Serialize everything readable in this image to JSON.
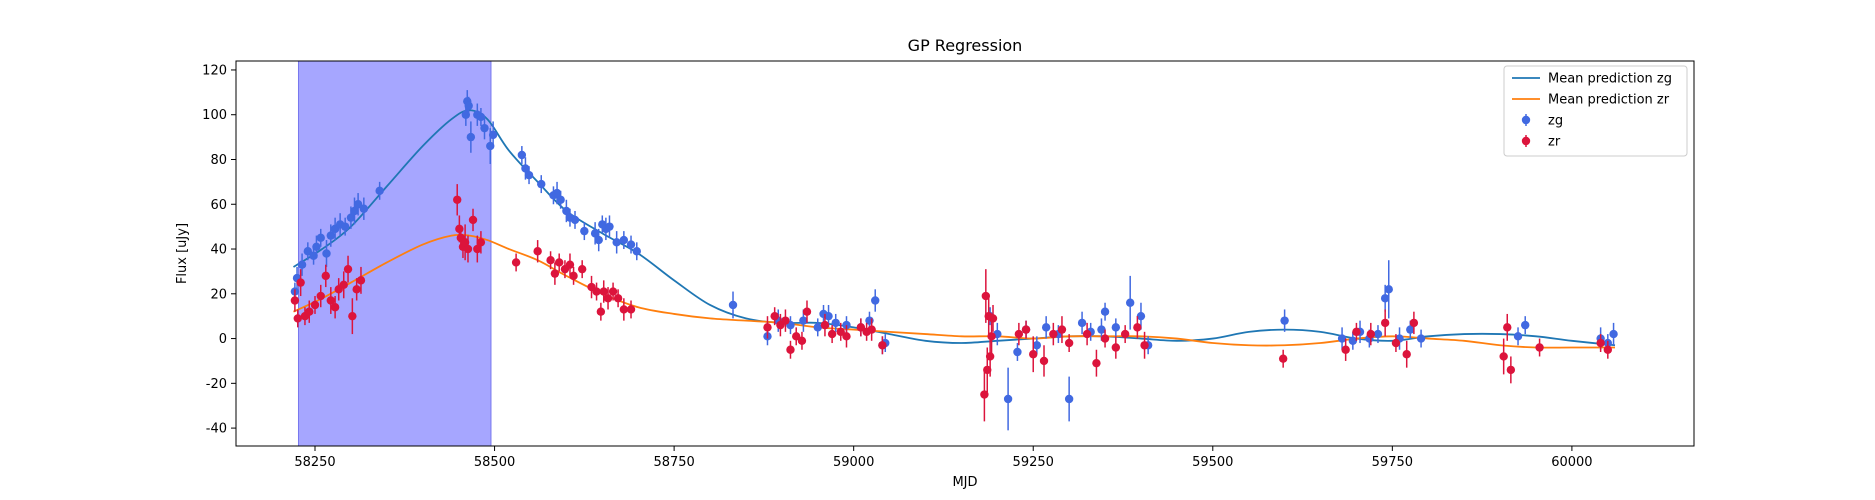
{
  "chart_data": {
    "type": "scatter",
    "title": "GP Regression",
    "xlabel": "MJD",
    "ylabel": "Flux [uJy]",
    "xlim": [
      58140,
      60170
    ],
    "ylim": [
      -48,
      124
    ],
    "xticks": [
      58250,
      58500,
      58750,
      59000,
      59250,
      59500,
      59750,
      60000
    ],
    "yticks": [
      -40,
      -20,
      0,
      20,
      40,
      60,
      80,
      100,
      120
    ],
    "grid": false,
    "legend_position": "top-right",
    "shaded_region": {
      "x0": 58227,
      "x1": 58495,
      "color": "#a6a6ff"
    },
    "colors": {
      "zg_line": "#1f77b4",
      "zr_line": "#ff7f0e",
      "zg_points": "#4169e1",
      "zr_points": "#dc143c"
    },
    "legend": [
      {
        "label": "Mean prediction zg",
        "kind": "line",
        "color": "#1f77b4"
      },
      {
        "label": "Mean prediction zr",
        "kind": "line",
        "color": "#ff7f0e"
      },
      {
        "label": "zg",
        "kind": "point",
        "color": "#4169e1"
      },
      {
        "label": "zr",
        "kind": "point",
        "color": "#dc143c"
      }
    ],
    "lines": [
      {
        "name": "Mean prediction zg",
        "x": [
          58220,
          58260,
          58300,
          58350,
          58400,
          58440,
          58465,
          58490,
          58520,
          58560,
          58600,
          58650,
          58700,
          58750,
          58800,
          58850,
          58900,
          58950,
          59000,
          59050,
          59100,
          59150,
          59200,
          59250,
          59300,
          59350,
          59400,
          59450,
          59500,
          59550,
          59600,
          59650,
          59700,
          59750,
          59800,
          59850,
          59900,
          59950,
          60000,
          60060
        ],
        "y": [
          32,
          40,
          50,
          68,
          86,
          98,
          102,
          98,
          84,
          70,
          57,
          47,
          38,
          26,
          15,
          9,
          7,
          7,
          5,
          2,
          -1,
          -2,
          -1,
          0,
          1,
          1,
          0,
          -1,
          0,
          3,
          4,
          3,
          0,
          -1,
          1,
          2,
          2,
          1,
          -1,
          -3
        ]
      },
      {
        "name": "Mean prediction zr",
        "x": [
          58220,
          58260,
          58300,
          58350,
          58400,
          58440,
          58465,
          58490,
          58520,
          58560,
          58600,
          58650,
          58700,
          58750,
          58800,
          58850,
          58900,
          58950,
          59000,
          59050,
          59100,
          59150,
          59200,
          59250,
          59300,
          59350,
          59400,
          59450,
          59500,
          59550,
          59600,
          59650,
          59700,
          59750,
          59800,
          59850,
          59900,
          59950,
          60000,
          60060
        ],
        "y": [
          12,
          18,
          25,
          34,
          42,
          46,
          46,
          44,
          40,
          35,
          28,
          20,
          14,
          11,
          9,
          8,
          7,
          5,
          4,
          3,
          2,
          1,
          1,
          0,
          1,
          1,
          1,
          0,
          -2,
          -3,
          -3,
          -2,
          0,
          1,
          0,
          -1,
          -3,
          -4,
          -4,
          -4
        ]
      }
    ],
    "series": [
      {
        "name": "zg",
        "points": [
          [
            58222,
            21,
            4
          ],
          [
            58225,
            27,
            5
          ],
          [
            58232,
            33,
            5
          ],
          [
            58240,
            39,
            4
          ],
          [
            58248,
            37,
            4
          ],
          [
            58252,
            41,
            5
          ],
          [
            58258,
            45,
            4
          ],
          [
            58266,
            38,
            6
          ],
          [
            58272,
            46,
            5
          ],
          [
            58278,
            49,
            5
          ],
          [
            58285,
            51,
            5
          ],
          [
            58292,
            50,
            4
          ],
          [
            58300,
            54,
            5
          ],
          [
            58305,
            57,
            6
          ],
          [
            58310,
            60,
            5
          ],
          [
            58318,
            58,
            5
          ],
          [
            58340,
            66,
            4
          ],
          [
            58460,
            100,
            5
          ],
          [
            58462,
            106,
            5
          ],
          [
            58464,
            104,
            4
          ],
          [
            58467,
            90,
            7
          ],
          [
            58476,
            100,
            5
          ],
          [
            58481,
            99,
            4
          ],
          [
            58486,
            94,
            5
          ],
          [
            58494,
            86,
            8
          ],
          [
            58498,
            91,
            6
          ],
          [
            58538,
            82,
            4
          ],
          [
            58543,
            76,
            5
          ],
          [
            58548,
            73,
            4
          ],
          [
            58565,
            69,
            4
          ],
          [
            58582,
            64,
            4
          ],
          [
            58587,
            65,
            5
          ],
          [
            58592,
            62,
            4
          ],
          [
            58600,
            57,
            5
          ],
          [
            58605,
            54,
            4
          ],
          [
            58612,
            53,
            4
          ],
          [
            58625,
            48,
            4
          ],
          [
            58640,
            47,
            5
          ],
          [
            58645,
            44,
            5
          ],
          [
            58650,
            51,
            4
          ],
          [
            58655,
            49,
            5
          ],
          [
            58660,
            50,
            5
          ],
          [
            58670,
            43,
            5
          ],
          [
            58680,
            44,
            4
          ],
          [
            58690,
            42,
            4
          ],
          [
            58698,
            39,
            4
          ],
          [
            58832,
            15,
            6
          ],
          [
            58880,
            1,
            4
          ],
          [
            58895,
            8,
            5
          ],
          [
            58912,
            6,
            4
          ],
          [
            58930,
            8,
            5
          ],
          [
            58950,
            5,
            4
          ],
          [
            58958,
            11,
            4
          ],
          [
            58965,
            10,
            5
          ],
          [
            58975,
            7,
            4
          ],
          [
            58990,
            6,
            4
          ],
          [
            59010,
            5,
            4
          ],
          [
            59022,
            8,
            4
          ],
          [
            59030,
            17,
            5
          ],
          [
            59040,
            -3,
            4
          ],
          [
            59044,
            -2,
            4
          ],
          [
            59190,
            10,
            4
          ],
          [
            59200,
            2,
            5
          ],
          [
            59215,
            -27,
            14
          ],
          [
            59228,
            -6,
            4
          ],
          [
            59240,
            4,
            4
          ],
          [
            59255,
            -3,
            4
          ],
          [
            59268,
            5,
            5
          ],
          [
            59285,
            2,
            4
          ],
          [
            59300,
            -27,
            10
          ],
          [
            59318,
            7,
            5
          ],
          [
            59330,
            3,
            4
          ],
          [
            59345,
            4,
            5
          ],
          [
            59350,
            12,
            4
          ],
          [
            59365,
            5,
            4
          ],
          [
            59385,
            16,
            12
          ],
          [
            59400,
            10,
            6
          ],
          [
            59410,
            -3,
            4
          ],
          [
            59600,
            8,
            5
          ],
          [
            59680,
            0,
            5
          ],
          [
            59695,
            -1,
            4
          ],
          [
            59705,
            3,
            5
          ],
          [
            59718,
            0,
            4
          ],
          [
            59730,
            2,
            4
          ],
          [
            59740,
            18,
            6
          ],
          [
            59745,
            22,
            13
          ],
          [
            59760,
            0,
            5
          ],
          [
            59775,
            4,
            4
          ],
          [
            59790,
            0,
            4
          ],
          [
            59925,
            1,
            4
          ],
          [
            59935,
            6,
            4
          ],
          [
            60040,
            0,
            5
          ],
          [
            60050,
            -2,
            4
          ],
          [
            60058,
            2,
            5
          ]
        ]
      },
      {
        "name": "zr",
        "points": [
          [
            58222,
            17,
            5
          ],
          [
            58226,
            9,
            4
          ],
          [
            58230,
            25,
            6
          ],
          [
            58236,
            10,
            4
          ],
          [
            58242,
            12,
            5
          ],
          [
            58250,
            15,
            4
          ],
          [
            58258,
            19,
            5
          ],
          [
            58265,
            28,
            5
          ],
          [
            58272,
            17,
            6
          ],
          [
            58278,
            14,
            5
          ],
          [
            58283,
            22,
            5
          ],
          [
            58290,
            24,
            6
          ],
          [
            58296,
            31,
            6
          ],
          [
            58302,
            10,
            8
          ],
          [
            58308,
            22,
            5
          ],
          [
            58314,
            26,
            6
          ],
          [
            58448,
            62,
            7
          ],
          [
            58451,
            49,
            6
          ],
          [
            58453,
            45,
            5
          ],
          [
            58456,
            41,
            5
          ],
          [
            58459,
            43,
            8
          ],
          [
            58463,
            40,
            6
          ],
          [
            58470,
            53,
            5
          ],
          [
            58476,
            40,
            6
          ],
          [
            58481,
            43,
            5
          ],
          [
            58530,
            34,
            4
          ],
          [
            58560,
            39,
            5
          ],
          [
            58578,
            35,
            4
          ],
          [
            58584,
            29,
            5
          ],
          [
            58590,
            34,
            4
          ],
          [
            58598,
            31,
            4
          ],
          [
            58605,
            33,
            5
          ],
          [
            58610,
            28,
            4
          ],
          [
            58622,
            31,
            4
          ],
          [
            58635,
            23,
            5
          ],
          [
            58642,
            21,
            4
          ],
          [
            58648,
            12,
            4
          ],
          [
            58652,
            21,
            5
          ],
          [
            58658,
            18,
            5
          ],
          [
            58665,
            21,
            4
          ],
          [
            58672,
            18,
            4
          ],
          [
            58680,
            13,
            5
          ],
          [
            58690,
            13,
            4
          ],
          [
            58880,
            5,
            5
          ],
          [
            58890,
            10,
            4
          ],
          [
            58898,
            6,
            5
          ],
          [
            58905,
            8,
            5
          ],
          [
            58912,
            -5,
            4
          ],
          [
            58920,
            1,
            4
          ],
          [
            58928,
            -1,
            4
          ],
          [
            58935,
            12,
            5
          ],
          [
            58960,
            6,
            5
          ],
          [
            58970,
            2,
            4
          ],
          [
            58982,
            3,
            4
          ],
          [
            58990,
            1,
            5
          ],
          [
            59010,
            5,
            4
          ],
          [
            59018,
            3,
            4
          ],
          [
            59025,
            4,
            5
          ],
          [
            59040,
            -3,
            4
          ],
          [
            59182,
            -25,
            12
          ],
          [
            59184,
            19,
            12
          ],
          [
            59186,
            -14,
            10
          ],
          [
            59188,
            10,
            10
          ],
          [
            59190,
            -8,
            9
          ],
          [
            59192,
            1,
            8
          ],
          [
            59194,
            9,
            6
          ],
          [
            59230,
            2,
            5
          ],
          [
            59240,
            4,
            4
          ],
          [
            59250,
            -7,
            8
          ],
          [
            59265,
            -10,
            7
          ],
          [
            59278,
            2,
            5
          ],
          [
            59290,
            4,
            6
          ],
          [
            59300,
            -2,
            4
          ],
          [
            59325,
            2,
            5
          ],
          [
            59338,
            -11,
            6
          ],
          [
            59350,
            0,
            4
          ],
          [
            59365,
            -4,
            5
          ],
          [
            59378,
            2,
            4
          ],
          [
            59395,
            5,
            5
          ],
          [
            59405,
            -3,
            6
          ],
          [
            59598,
            -9,
            4
          ],
          [
            59685,
            -5,
            5
          ],
          [
            59700,
            3,
            4
          ],
          [
            59720,
            2,
            5
          ],
          [
            59740,
            7,
            6
          ],
          [
            59755,
            -2,
            4
          ],
          [
            59770,
            -7,
            6
          ],
          [
            59780,
            7,
            5
          ],
          [
            59905,
            -8,
            8
          ],
          [
            59910,
            5,
            6
          ],
          [
            59915,
            -14,
            6
          ],
          [
            59955,
            -4,
            4
          ],
          [
            60040,
            -2,
            4
          ],
          [
            60050,
            -5,
            4
          ]
        ]
      }
    ]
  }
}
